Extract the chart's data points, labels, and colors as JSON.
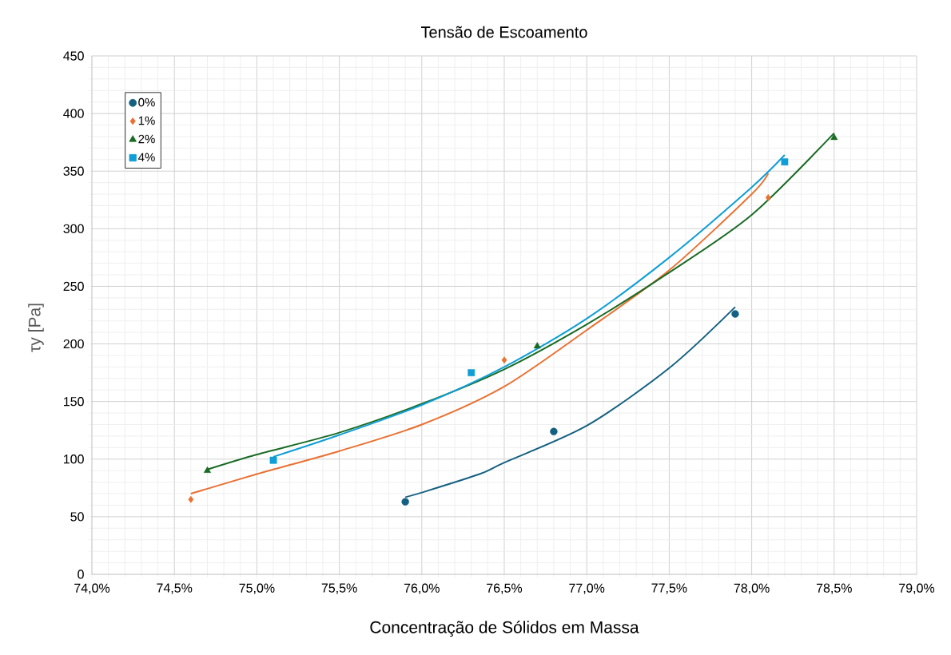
{
  "chart_data": {
    "type": "scatter",
    "title": "Tensão de Escoamento",
    "xlabel": "Concentração de Sólidos em Massa",
    "ylabel": "τy [Pa]",
    "xlim": [
      74.0,
      79.0
    ],
    "xticks": [
      {
        "value": 74.0,
        "label": "74,0%"
      },
      {
        "value": 74.5,
        "label": "74,5%"
      },
      {
        "value": 75.0,
        "label": "75,0%"
      },
      {
        "value": 75.5,
        "label": "75,5%"
      },
      {
        "value": 76.0,
        "label": "76,0%"
      },
      {
        "value": 76.5,
        "label": "76,5%"
      },
      {
        "value": 77.0,
        "label": "77,0%"
      },
      {
        "value": 77.5,
        "label": "77,5%"
      },
      {
        "value": 78.0,
        "label": "78,0%"
      },
      {
        "value": 78.5,
        "label": "78,5%"
      },
      {
        "value": 79.0,
        "label": "79,0%"
      }
    ],
    "ylim": [
      0,
      450
    ],
    "yticks": [
      0,
      50,
      100,
      150,
      200,
      250,
      300,
      350,
      400,
      450
    ],
    "grid": true,
    "legend": "top left",
    "series": [
      {
        "name": "0%",
        "color": "#156082",
        "marker": "circle",
        "x": [
          75.9,
          76.8,
          77.9
        ],
        "values": [
          63,
          124,
          226
        ]
      },
      {
        "name": "1%",
        "color": "#e97132",
        "marker": "diamond",
        "x": [
          74.6,
          76.5,
          78.1
        ],
        "values": [
          65,
          186,
          327
        ]
      },
      {
        "name": "2%",
        "color": "#196b24",
        "marker": "triangle",
        "x": [
          74.7,
          76.7,
          78.5
        ],
        "values": [
          90,
          198,
          379
        ]
      },
      {
        "name": "4%",
        "color": "#0f9ed5",
        "marker": "square",
        "x": [
          75.1,
          76.3,
          78.2
        ],
        "values": [
          99,
          175,
          358
        ]
      },
      {
        "type": "line",
        "color": "#156082",
        "x": [
          75.9,
          76.0,
          76.35,
          76.5,
          77.0,
          77.5,
          77.9
        ],
        "values": [
          67,
          71,
          87,
          97,
          129,
          179,
          232
        ]
      },
      {
        "type": "line",
        "color": "#e97132",
        "x": [
          74.6,
          75.0,
          75.5,
          76.0,
          76.5,
          77.0,
          77.5,
          78.0,
          78.1
        ],
        "values": [
          70,
          87,
          107,
          130,
          163,
          212,
          264,
          330,
          348
        ]
      },
      {
        "type": "line",
        "color": "#196b24",
        "x": [
          74.7,
          75.0,
          75.5,
          76.0,
          76.5,
          77.0,
          77.5,
          78.0,
          78.5
        ],
        "values": [
          91,
          104,
          123,
          148,
          178,
          217,
          262,
          312,
          383
        ]
      },
      {
        "type": "line",
        "color": "#0f9ed5",
        "x": [
          75.1,
          75.5,
          76.0,
          76.5,
          77.0,
          77.5,
          78.0,
          78.2
        ],
        "values": [
          102,
          121,
          147,
          180,
          222,
          275,
          336,
          364
        ]
      }
    ]
  }
}
